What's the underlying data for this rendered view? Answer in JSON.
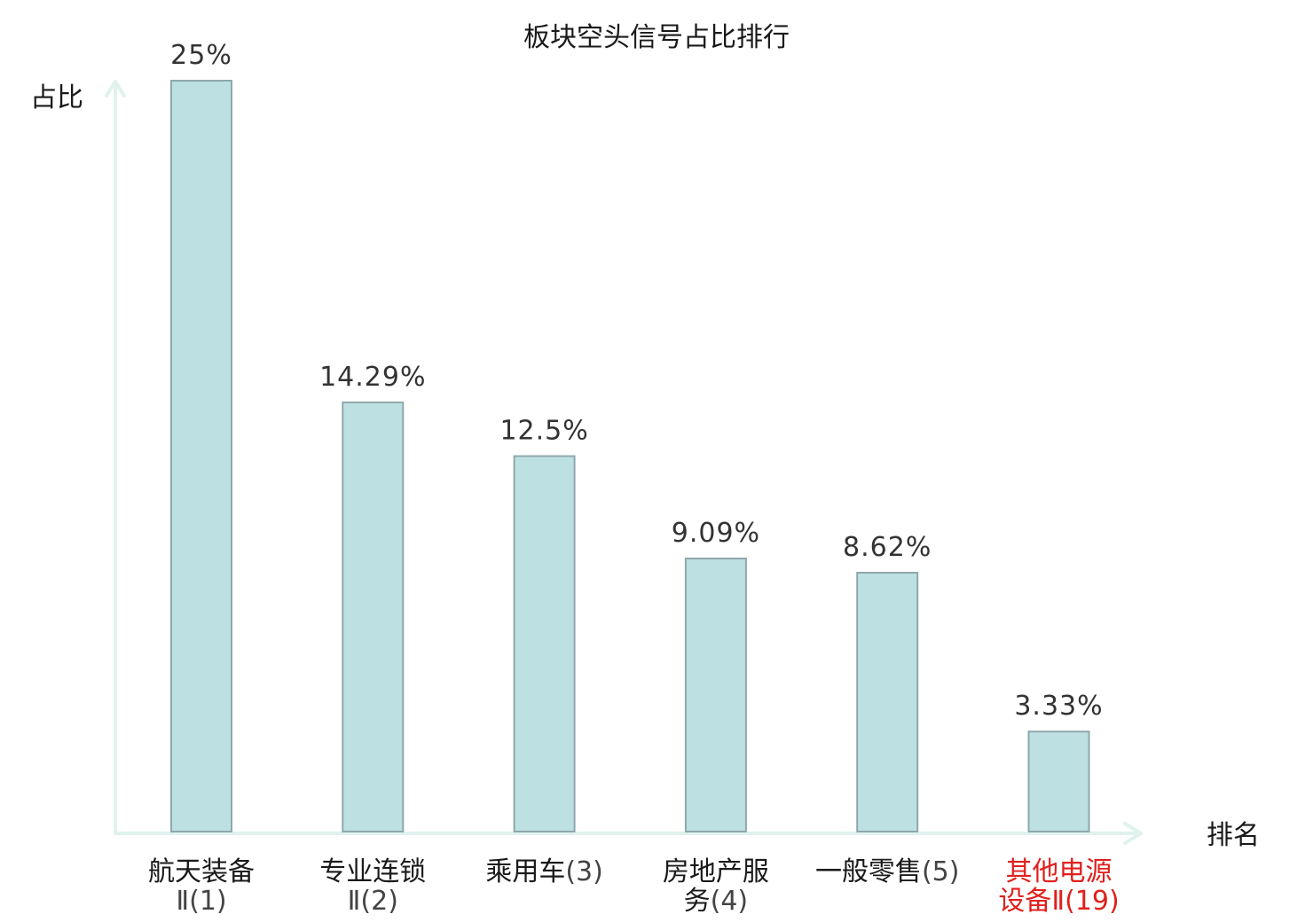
{
  "chart_data": {
    "type": "bar",
    "title": "板块空头信号占比排行",
    "ylabel": "占比",
    "xlabel": "排名",
    "ylim": [
      0,
      25
    ],
    "categories": [
      {
        "lines": [
          {
            "name": "航天装备",
            "rank": ""
          },
          {
            "name": "",
            "rank": "Ⅱ(1)"
          }
        ],
        "highlight": false
      },
      {
        "lines": [
          {
            "name": "专业连锁",
            "rank": ""
          },
          {
            "name": "",
            "rank": "Ⅱ(2)"
          }
        ],
        "highlight": false
      },
      {
        "lines": [
          {
            "name": "乘用车",
            "rank": "(3)"
          }
        ],
        "highlight": false
      },
      {
        "lines": [
          {
            "name": "房地产服",
            "rank": ""
          },
          {
            "name": "务",
            "rank": "(4)"
          }
        ],
        "highlight": false
      },
      {
        "lines": [
          {
            "name": "一般零售",
            "rank": "(5)"
          }
        ],
        "highlight": false
      },
      {
        "lines": [
          {
            "name": "其他电源",
            "rank": ""
          },
          {
            "name": "设备",
            "rank": "Ⅱ(19)"
          }
        ],
        "highlight": true
      }
    ],
    "values": [
      25,
      14.29,
      12.5,
      9.09,
      8.62,
      3.33
    ],
    "value_labels": [
      "25%",
      "14.29%",
      "12.5%",
      "9.09%",
      "8.62%",
      "3.33%"
    ],
    "colors": {
      "bar_fill": "#bde0e3",
      "bar_stroke": "#8fa8ab",
      "axis": "#dff2ee",
      "text": "#1a1a1a",
      "rank_text": "#444444",
      "value_text": "#333333",
      "highlight": "#e0201d"
    }
  }
}
